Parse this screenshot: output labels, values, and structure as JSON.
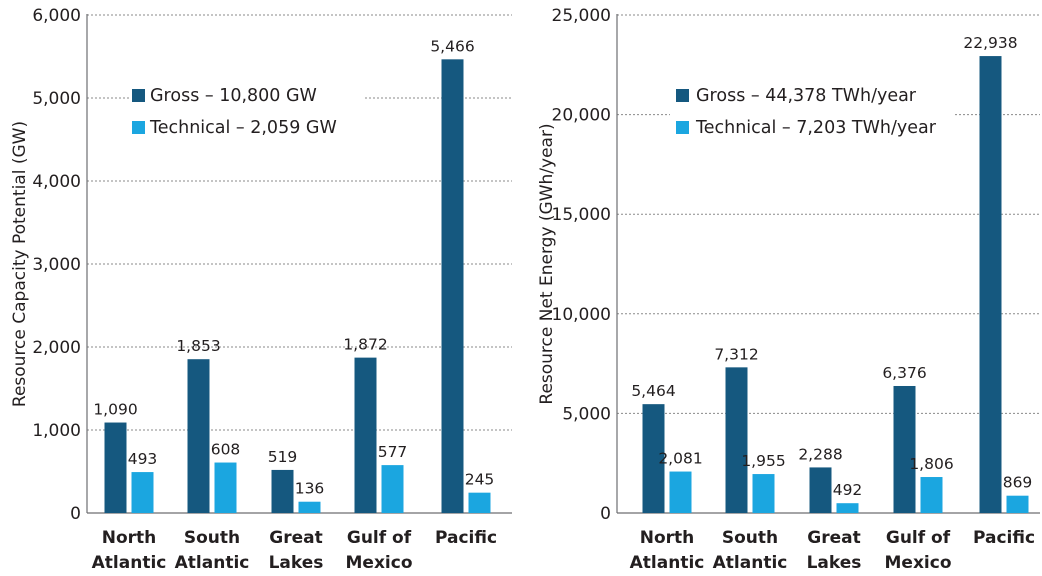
{
  "chart_data": [
    {
      "type": "bar",
      "title": "",
      "xlabel": "",
      "ylabel": "Resource Capacity Potential (GW)",
      "ylim": [
        0,
        6000
      ],
      "yticks": [
        0,
        1000,
        2000,
        3000,
        4000,
        5000,
        6000
      ],
      "ytick_labels": [
        "0",
        "1,000",
        "2,000",
        "3,000",
        "4,000",
        "5,000",
        "6,000"
      ],
      "categories": [
        [
          "North",
          "Atlantic"
        ],
        [
          "South",
          "Atlantic"
        ],
        [
          "Great",
          "Lakes"
        ],
        [
          "Gulf of",
          "Mexico"
        ],
        [
          "Pacific"
        ]
      ],
      "series": [
        {
          "name": "Gross – 10,800 GW",
          "color": "#15587f",
          "values": [
            1090,
            1853,
            519,
            1872,
            5466
          ],
          "labels": [
            "1,090",
            "1,853",
            "519",
            "1,872",
            "5,466"
          ]
        },
        {
          "name": "Technical – 2,059 GW",
          "color": "#1ba6e0",
          "values": [
            493,
            608,
            136,
            577,
            245
          ],
          "labels": [
            "493",
            "608",
            "136",
            "577",
            "245"
          ]
        }
      ],
      "grid": true,
      "legend": "upper-center"
    },
    {
      "type": "bar",
      "title": "",
      "xlabel": "",
      "ylabel": "Resource Net Energy (GWh/year)",
      "ylim": [
        0,
        25000
      ],
      "yticks": [
        0,
        5000,
        10000,
        15000,
        20000,
        25000
      ],
      "ytick_labels": [
        "0",
        "5,000",
        "10,000",
        "15,000",
        "20,000",
        "25,000"
      ],
      "categories": [
        [
          "North",
          "Atlantic"
        ],
        [
          "South",
          "Atlantic"
        ],
        [
          "Great",
          "Lakes"
        ],
        [
          "Gulf of",
          "Mexico"
        ],
        [
          "Pacific"
        ]
      ],
      "series": [
        {
          "name": "Gross – 44,378 TWh/year",
          "color": "#15587f",
          "values": [
            5464,
            7312,
            2288,
            6376,
            22938
          ],
          "labels": [
            "5,464",
            "7,312",
            "2,288",
            "6,376",
            "22,938"
          ]
        },
        {
          "name": "Technical – 7,203 TWh/year",
          "color": "#1ba6e0",
          "values": [
            2081,
            1955,
            492,
            1806,
            869
          ],
          "labels": [
            "2,081",
            "1,955",
            "492",
            "1,806",
            "869"
          ]
        }
      ],
      "grid": true,
      "legend": "upper-center"
    }
  ]
}
